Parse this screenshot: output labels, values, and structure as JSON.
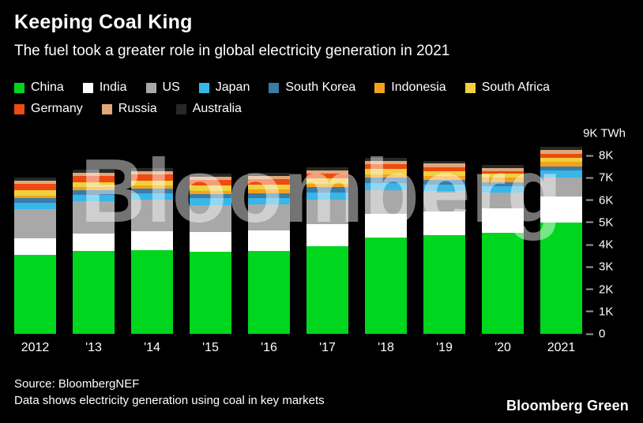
{
  "header": {
    "title": "Keeping Coal King",
    "subtitle": "The fuel took a greater role in global electricity generation in 2021"
  },
  "watermark_text": "Bloomberg",
  "chart_data": {
    "type": "bar",
    "stacked": true,
    "title": "Keeping Coal King",
    "subtitle": "The fuel took a greater role in global electricity generation in 2021",
    "ylabel": "TWh",
    "ylim": [
      0,
      9000
    ],
    "grid": false,
    "legend_position": "top",
    "axis_top_label": {
      "label": "9K TWh",
      "value": 9000
    },
    "categories": [
      "2012",
      "'13",
      "'14",
      "'15",
      "'16",
      "'17",
      "'18",
      "'19",
      "'20",
      "2021"
    ],
    "y_ticks": [
      {
        "label": "8K",
        "value": 8000
      },
      {
        "label": "7K",
        "value": 7000
      },
      {
        "label": "6K",
        "value": 6000
      },
      {
        "label": "5K",
        "value": 5000
      },
      {
        "label": "4K",
        "value": 4000
      },
      {
        "label": "3K",
        "value": 3000
      },
      {
        "label": "2K",
        "value": 2000
      },
      {
        "label": "1K",
        "value": 1000
      },
      {
        "label": "0",
        "value": 0
      }
    ],
    "series": [
      {
        "name": "China",
        "color": "#00d61e",
        "values": [
          3550,
          3720,
          3750,
          3680,
          3720,
          3930,
          4340,
          4440,
          4550,
          5000
        ]
      },
      {
        "name": "India",
        "color": "#ffffff",
        "values": [
          730,
          790,
          850,
          880,
          930,
          980,
          1050,
          1070,
          1070,
          1180
        ]
      },
      {
        "name": "US",
        "color": "#a8a8a8",
        "values": [
          1320,
          1440,
          1430,
          1230,
          1150,
          1130,
          1070,
          900,
          720,
          850
        ]
      },
      {
        "name": "Japan",
        "color": "#36b6e9",
        "values": [
          290,
          300,
          290,
          290,
          300,
          310,
          300,
          290,
          280,
          290
        ]
      },
      {
        "name": "South Korea",
        "color": "#3a7ca8",
        "values": [
          210,
          210,
          210,
          210,
          220,
          240,
          240,
          220,
          200,
          210
        ]
      },
      {
        "name": "Indonesia",
        "color": "#f5a11b",
        "values": [
          110,
          120,
          130,
          140,
          150,
          160,
          170,
          180,
          180,
          190
        ]
      },
      {
        "name": "South Africa",
        "color": "#eed13c",
        "values": [
          230,
          230,
          230,
          220,
          220,
          220,
          220,
          210,
          190,
          200
        ]
      },
      {
        "name": "Germany",
        "color": "#ee4a12",
        "values": [
          280,
          280,
          270,
          260,
          250,
          230,
          220,
          170,
          120,
          160
        ]
      },
      {
        "name": "Russia",
        "color": "#dfa878",
        "values": [
          150,
          150,
          150,
          140,
          150,
          150,
          160,
          160,
          150,
          170
        ]
      },
      {
        "name": "Australia",
        "color": "#272727",
        "values": [
          150,
          150,
          150,
          150,
          140,
          140,
          140,
          140,
          130,
          140
        ]
      }
    ]
  },
  "footer": {
    "source": "Source: BloombergNEF",
    "note": "Data shows electricity generation using coal in key markets",
    "brand": "Bloomberg Green"
  }
}
